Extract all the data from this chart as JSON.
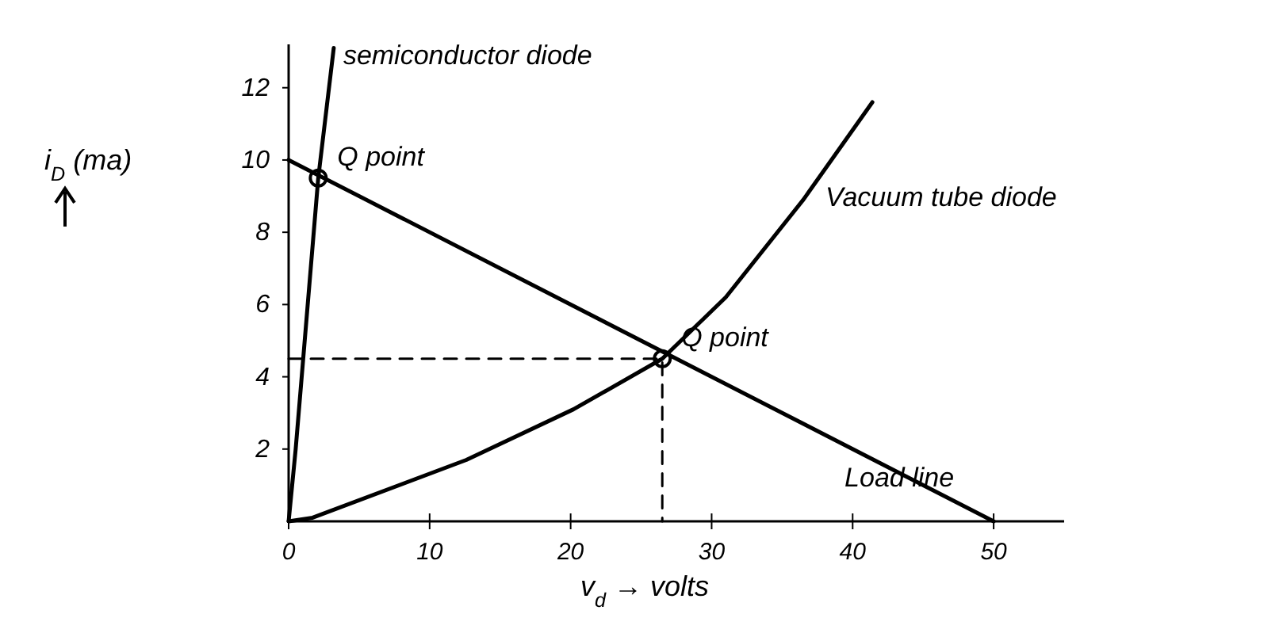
{
  "chart_data": {
    "type": "line",
    "xlabel": "v$_{d}$ → volts",
    "ylabel": "i$_{D}$(ma)",
    "xlim": [
      0,
      55
    ],
    "ylim": [
      0,
      13.2
    ],
    "xticks": [
      0,
      10,
      20,
      30,
      40,
      50
    ],
    "yticks": [
      2,
      4,
      6,
      8,
      10,
      12
    ],
    "series": [
      {
        "name": "semiconductor diode",
        "color": "#000000",
        "x": [
          0,
          0.5,
          2.1,
          3.2
        ],
        "values": [
          0,
          2,
          9.5,
          13.1
        ]
      },
      {
        "name": "Vacuum tube diode",
        "color": "#000000",
        "x": [
          0,
          1.7,
          12.6,
          20.2,
          26.5,
          31,
          36.5,
          41.4
        ],
        "values": [
          0,
          0.1,
          1.7,
          3.1,
          4.5,
          6.2,
          8.9,
          11.6
        ]
      },
      {
        "name": "Load line",
        "color": "#000000",
        "x": [
          0,
          50
        ],
        "values": [
          10,
          0
        ]
      },
      {
        "type": "line",
        "line_style": "dashed",
        "color": "#000000",
        "x": [
          0,
          26.5,
          26.5
        ],
        "values": [
          4.5,
          4.5,
          0
        ]
      },
      {
        "type": "scatter",
        "marker": "circle",
        "color": "#000000",
        "x": [
          2.1,
          26.5
        ],
        "values": [
          9.5,
          4.5
        ]
      }
    ],
    "annotations": [
      {
        "text": "Q point",
        "x": 2.1,
        "y": 9.5
      },
      {
        "text": "Q point",
        "x": 26.5,
        "y": 4.5
      }
    ],
    "grid": false
  }
}
